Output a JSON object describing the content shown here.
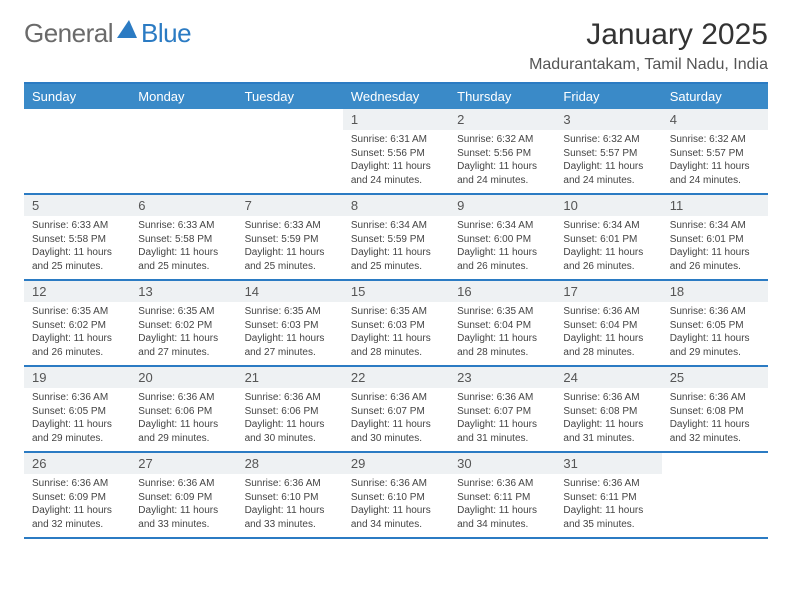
{
  "brand": {
    "general": "General",
    "blue": "Blue"
  },
  "title": "January 2025",
  "location": "Madurantakam, Tamil Nadu, India",
  "colors": {
    "header_bar": "#3a8ac8",
    "border": "#2b7bc3",
    "daynum_bg": "#eef1f3",
    "text": "#444444",
    "title_text": "#333333",
    "logo_gray": "#6a6a6a",
    "logo_blue": "#2b7bc3",
    "background": "#ffffff"
  },
  "daynames": [
    "Sunday",
    "Monday",
    "Tuesday",
    "Wednesday",
    "Thursday",
    "Friday",
    "Saturday"
  ],
  "weeks": [
    [
      {
        "num": "",
        "sunrise": "",
        "sunset": "",
        "daylight": ""
      },
      {
        "num": "",
        "sunrise": "",
        "sunset": "",
        "daylight": ""
      },
      {
        "num": "",
        "sunrise": "",
        "sunset": "",
        "daylight": ""
      },
      {
        "num": "1",
        "sunrise": "Sunrise: 6:31 AM",
        "sunset": "Sunset: 5:56 PM",
        "daylight": "Daylight: 11 hours and 24 minutes."
      },
      {
        "num": "2",
        "sunrise": "Sunrise: 6:32 AM",
        "sunset": "Sunset: 5:56 PM",
        "daylight": "Daylight: 11 hours and 24 minutes."
      },
      {
        "num": "3",
        "sunrise": "Sunrise: 6:32 AM",
        "sunset": "Sunset: 5:57 PM",
        "daylight": "Daylight: 11 hours and 24 minutes."
      },
      {
        "num": "4",
        "sunrise": "Sunrise: 6:32 AM",
        "sunset": "Sunset: 5:57 PM",
        "daylight": "Daylight: 11 hours and 24 minutes."
      }
    ],
    [
      {
        "num": "5",
        "sunrise": "Sunrise: 6:33 AM",
        "sunset": "Sunset: 5:58 PM",
        "daylight": "Daylight: 11 hours and 25 minutes."
      },
      {
        "num": "6",
        "sunrise": "Sunrise: 6:33 AM",
        "sunset": "Sunset: 5:58 PM",
        "daylight": "Daylight: 11 hours and 25 minutes."
      },
      {
        "num": "7",
        "sunrise": "Sunrise: 6:33 AM",
        "sunset": "Sunset: 5:59 PM",
        "daylight": "Daylight: 11 hours and 25 minutes."
      },
      {
        "num": "8",
        "sunrise": "Sunrise: 6:34 AM",
        "sunset": "Sunset: 5:59 PM",
        "daylight": "Daylight: 11 hours and 25 minutes."
      },
      {
        "num": "9",
        "sunrise": "Sunrise: 6:34 AM",
        "sunset": "Sunset: 6:00 PM",
        "daylight": "Daylight: 11 hours and 26 minutes."
      },
      {
        "num": "10",
        "sunrise": "Sunrise: 6:34 AM",
        "sunset": "Sunset: 6:01 PM",
        "daylight": "Daylight: 11 hours and 26 minutes."
      },
      {
        "num": "11",
        "sunrise": "Sunrise: 6:34 AM",
        "sunset": "Sunset: 6:01 PM",
        "daylight": "Daylight: 11 hours and 26 minutes."
      }
    ],
    [
      {
        "num": "12",
        "sunrise": "Sunrise: 6:35 AM",
        "sunset": "Sunset: 6:02 PM",
        "daylight": "Daylight: 11 hours and 26 minutes."
      },
      {
        "num": "13",
        "sunrise": "Sunrise: 6:35 AM",
        "sunset": "Sunset: 6:02 PM",
        "daylight": "Daylight: 11 hours and 27 minutes."
      },
      {
        "num": "14",
        "sunrise": "Sunrise: 6:35 AM",
        "sunset": "Sunset: 6:03 PM",
        "daylight": "Daylight: 11 hours and 27 minutes."
      },
      {
        "num": "15",
        "sunrise": "Sunrise: 6:35 AM",
        "sunset": "Sunset: 6:03 PM",
        "daylight": "Daylight: 11 hours and 28 minutes."
      },
      {
        "num": "16",
        "sunrise": "Sunrise: 6:35 AM",
        "sunset": "Sunset: 6:04 PM",
        "daylight": "Daylight: 11 hours and 28 minutes."
      },
      {
        "num": "17",
        "sunrise": "Sunrise: 6:36 AM",
        "sunset": "Sunset: 6:04 PM",
        "daylight": "Daylight: 11 hours and 28 minutes."
      },
      {
        "num": "18",
        "sunrise": "Sunrise: 6:36 AM",
        "sunset": "Sunset: 6:05 PM",
        "daylight": "Daylight: 11 hours and 29 minutes."
      }
    ],
    [
      {
        "num": "19",
        "sunrise": "Sunrise: 6:36 AM",
        "sunset": "Sunset: 6:05 PM",
        "daylight": "Daylight: 11 hours and 29 minutes."
      },
      {
        "num": "20",
        "sunrise": "Sunrise: 6:36 AM",
        "sunset": "Sunset: 6:06 PM",
        "daylight": "Daylight: 11 hours and 29 minutes."
      },
      {
        "num": "21",
        "sunrise": "Sunrise: 6:36 AM",
        "sunset": "Sunset: 6:06 PM",
        "daylight": "Daylight: 11 hours and 30 minutes."
      },
      {
        "num": "22",
        "sunrise": "Sunrise: 6:36 AM",
        "sunset": "Sunset: 6:07 PM",
        "daylight": "Daylight: 11 hours and 30 minutes."
      },
      {
        "num": "23",
        "sunrise": "Sunrise: 6:36 AM",
        "sunset": "Sunset: 6:07 PM",
        "daylight": "Daylight: 11 hours and 31 minutes."
      },
      {
        "num": "24",
        "sunrise": "Sunrise: 6:36 AM",
        "sunset": "Sunset: 6:08 PM",
        "daylight": "Daylight: 11 hours and 31 minutes."
      },
      {
        "num": "25",
        "sunrise": "Sunrise: 6:36 AM",
        "sunset": "Sunset: 6:08 PM",
        "daylight": "Daylight: 11 hours and 32 minutes."
      }
    ],
    [
      {
        "num": "26",
        "sunrise": "Sunrise: 6:36 AM",
        "sunset": "Sunset: 6:09 PM",
        "daylight": "Daylight: 11 hours and 32 minutes."
      },
      {
        "num": "27",
        "sunrise": "Sunrise: 6:36 AM",
        "sunset": "Sunset: 6:09 PM",
        "daylight": "Daylight: 11 hours and 33 minutes."
      },
      {
        "num": "28",
        "sunrise": "Sunrise: 6:36 AM",
        "sunset": "Sunset: 6:10 PM",
        "daylight": "Daylight: 11 hours and 33 minutes."
      },
      {
        "num": "29",
        "sunrise": "Sunrise: 6:36 AM",
        "sunset": "Sunset: 6:10 PM",
        "daylight": "Daylight: 11 hours and 34 minutes."
      },
      {
        "num": "30",
        "sunrise": "Sunrise: 6:36 AM",
        "sunset": "Sunset: 6:11 PM",
        "daylight": "Daylight: 11 hours and 34 minutes."
      },
      {
        "num": "31",
        "sunrise": "Sunrise: 6:36 AM",
        "sunset": "Sunset: 6:11 PM",
        "daylight": "Daylight: 11 hours and 35 minutes."
      },
      {
        "num": "",
        "sunrise": "",
        "sunset": "",
        "daylight": ""
      }
    ]
  ]
}
